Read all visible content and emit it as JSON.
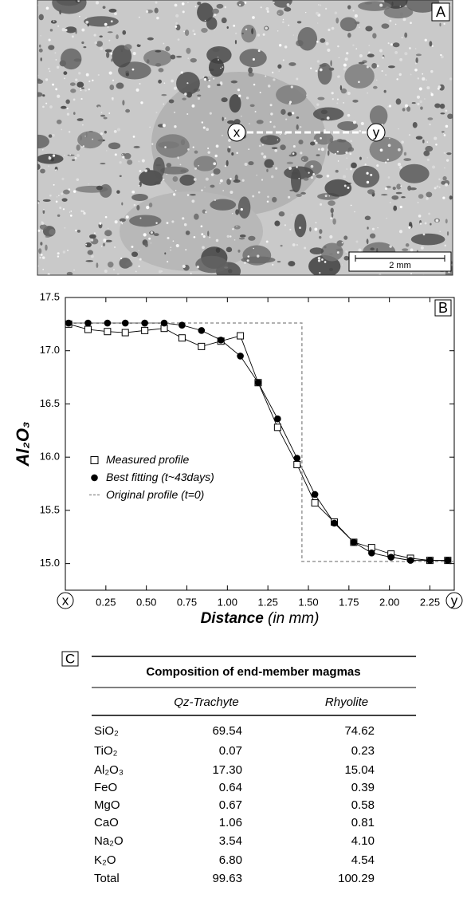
{
  "panel_a": {
    "label": "A",
    "start": "x",
    "end": "y",
    "scale": "2 mm"
  },
  "chart_data": {
    "type": "line",
    "label": "B",
    "ylabel": "Al₂O₃",
    "xlabel": "Distance",
    "xlabel_unit": "(in mm)",
    "xlim": [
      0,
      2.4
    ],
    "ylim": [
      14.75,
      17.5
    ],
    "xticks": [
      {
        "value": 0,
        "label": "x"
      },
      0.25,
      0.5,
      0.75,
      1,
      1.25,
      1.5,
      1.75,
      2,
      2.25,
      {
        "value": 2.4,
        "label": "y"
      }
    ],
    "yticks": [
      {
        "value": 15,
        "label": "15.0"
      },
      15.5,
      {
        "value": 16,
        "label": "16.0"
      },
      16.5,
      {
        "value": 17,
        "label": "17.0"
      },
      17.5
    ],
    "xtick_labels": [
      {
        "value": 0.25,
        "label": "0.25"
      },
      {
        "value": 0.5,
        "label": "0.50"
      },
      {
        "value": 0.75,
        "label": "0.75"
      },
      {
        "value": 1,
        "label": "1.00"
      },
      {
        "value": 1.25,
        "label": "1.25"
      },
      {
        "value": 1.5,
        "label": "1.50"
      },
      {
        "value": 1.75,
        "label": "1.75"
      },
      {
        "value": 2,
        "label": "2.00"
      },
      {
        "value": 2.25,
        "label": "2.25"
      }
    ],
    "legend": "center left",
    "series": [
      {
        "name": "Measured profile",
        "color": "#000000",
        "marker": "square",
        "x": [
          0.02,
          0.14,
          0.26,
          0.37,
          0.49,
          0.61,
          0.72,
          0.84,
          0.96,
          1.08,
          1.19,
          1.31,
          1.43,
          1.54,
          1.66,
          1.78,
          1.89,
          2.01,
          2.13,
          2.25,
          2.36
        ],
        "values": [
          17.25,
          17.2,
          17.18,
          17.17,
          17.19,
          17.21,
          17.12,
          17.04,
          17.09,
          17.14,
          16.7,
          16.28,
          15.93,
          15.57,
          15.39,
          15.2,
          15.15,
          15.09,
          15.05,
          15.03,
          15.03
        ]
      },
      {
        "name": "Best fitting (t~43days)",
        "color": "#000000",
        "marker": "circle",
        "x": [
          0.02,
          0.14,
          0.26,
          0.37,
          0.49,
          0.61,
          0.72,
          0.84,
          0.96,
          1.08,
          1.19,
          1.31,
          1.43,
          1.54,
          1.66,
          1.78,
          1.89,
          2.01,
          2.13,
          2.25,
          2.36
        ],
        "values": [
          17.26,
          17.26,
          17.26,
          17.26,
          17.26,
          17.26,
          17.24,
          17.19,
          17.1,
          16.95,
          16.7,
          16.36,
          15.99,
          15.65,
          15.38,
          15.2,
          15.1,
          15.06,
          15.03,
          15.03,
          15.03
        ]
      },
      {
        "name": "Original profile (t=0)",
        "color": "#999999",
        "marker": "none",
        "dash": true,
        "x": [
          0,
          1.46,
          1.46,
          2.4
        ],
        "values": [
          17.26,
          17.26,
          15.02,
          15.02
        ]
      }
    ]
  },
  "table": {
    "label": "C",
    "title": "Composition of end-member magmas",
    "header": [
      "Qz-Trachyte",
      "Rhyolite"
    ],
    "rows": [
      [
        "SiO₂",
        "69.54",
        "74.62"
      ],
      [
        "TiO₂",
        "0.07",
        "0.23"
      ],
      [
        "Al₂O₃",
        "17.30",
        "15.04"
      ],
      [
        "FeO",
        "0.64",
        "0.39"
      ],
      [
        "MgO",
        "0.67",
        "0.58"
      ],
      [
        "CaO",
        "1.06",
        "0.81"
      ],
      [
        "Na₂O",
        "3.54",
        "4.10"
      ],
      [
        "K₂O",
        "6.80",
        "4.54"
      ],
      [
        "Total",
        "99.63",
        "100.29"
      ]
    ]
  }
}
